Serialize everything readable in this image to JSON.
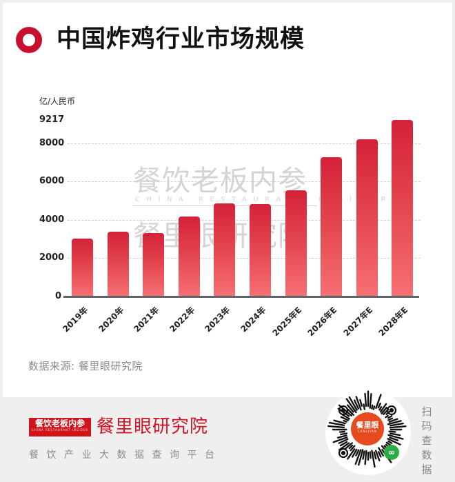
{
  "header": {
    "title": "中国炸鸡行业市场规模",
    "icon": "red-ring-icon"
  },
  "chart_data": {
    "type": "bar",
    "title": "中国炸鸡行业市场规模",
    "ylabel": "亿/人民币",
    "xlabel": "",
    "categories": [
      "2019年",
      "2020年",
      "2021年",
      "2022年",
      "2023年",
      "2024年",
      "2025年E",
      "2026年E",
      "2027年E",
      "2028年E"
    ],
    "values": [
      3020,
      3380,
      3320,
      4180,
      4840,
      4820,
      5540,
      7260,
      8200,
      9217
    ],
    "yticks": [
      0,
      2000,
      4000,
      6000,
      8000,
      9217
    ],
    "ytick_labels": [
      "0",
      "2000",
      "4000",
      "6000",
      "8000",
      "9217"
    ],
    "ylim": [
      0,
      9217
    ],
    "grid": true,
    "legend": null,
    "bar_color_top": "#d42238",
    "bar_color_bottom": "#f67073"
  },
  "axis": {
    "unit": "亿/人民币",
    "ticks": [
      "0",
      "2000",
      "4000",
      "6000",
      "8000",
      "9217"
    ]
  },
  "watermark": {
    "line1": "餐饮老板内参",
    "line2": "CHINA RESTAURANT INSIDER",
    "line3": "餐里眼研究院"
  },
  "source": "数据来源: 餐里眼研究院",
  "footer": {
    "logo_text": "餐饮老板内参",
    "logo_sub": "CHINA RESTAURANT INSIDER",
    "brand": "餐里眼研究院",
    "tagline": "餐饮产业大数据查询平台",
    "qr_center_title": "餐里眼",
    "qr_center_sub": "CANLIYAN",
    "scan_text": "扫码查数据"
  },
  "colors": {
    "accent": "#c8102e",
    "brand_red": "#cf1426",
    "qr_orange": "#e84a1f",
    "miniprogram_green": "#2bad44"
  }
}
